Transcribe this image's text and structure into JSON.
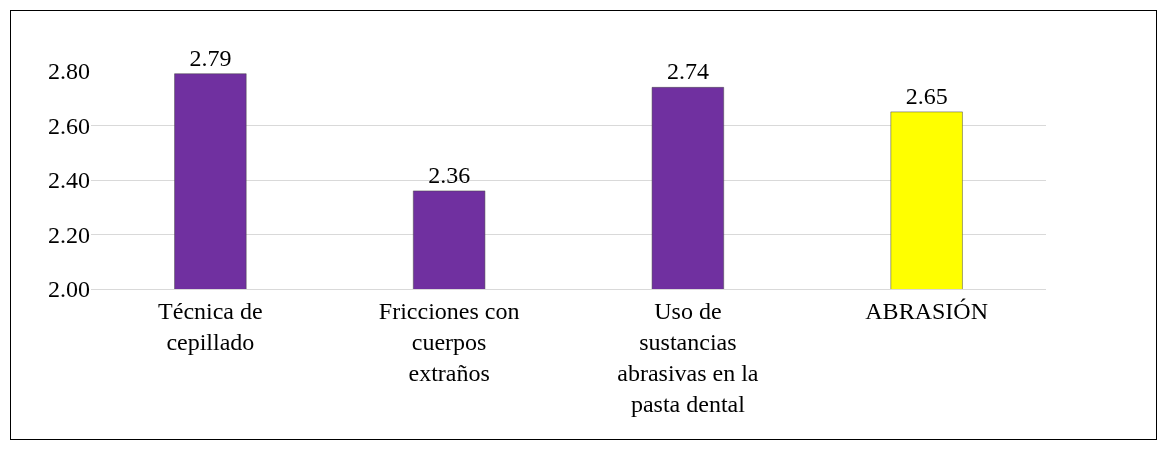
{
  "chart_data": {
    "type": "bar",
    "categories": [
      "Técnica de\ncepillado",
      "Fricciones con\ncuerpos\nextraños",
      "Uso de\nsustancias\nabrasivas en la\npasta dental",
      "ABRASIÓN"
    ],
    "values": [
      2.79,
      2.36,
      2.74,
      2.65
    ],
    "colors": [
      "#7030a0",
      "#7030a0",
      "#7030a0",
      "#ffff00"
    ],
    "ylim": [
      2,
      2.8
    ],
    "yticks": [
      {
        "value": 2,
        "label": "2.00"
      },
      {
        "value": 2.2,
        "label": "2.20"
      },
      {
        "value": 2.4,
        "label": "2.40"
      },
      {
        "value": 2.6,
        "label": "2.60"
      },
      {
        "value": 2.8,
        "label": "2.80"
      }
    ],
    "grid": "y",
    "data_labels": true,
    "legend": false
  }
}
